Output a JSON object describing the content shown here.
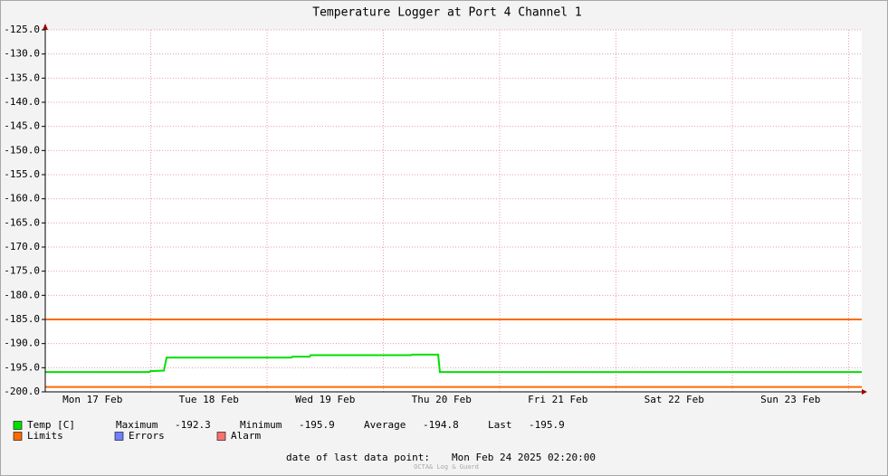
{
  "chart_data": {
    "type": "line",
    "title": "Temperature Logger at Port 4 Channel 1",
    "x": [
      0.093,
      0.988,
      0.996,
      1.113,
      1.136,
      2.21,
      2.218,
      2.366,
      2.374,
      3.237,
      3.245,
      3.471,
      3.486,
      7.113
    ],
    "series": [
      {
        "name": "Temp [C]",
        "color": "#00e000",
        "values": [
          -195.9,
          -195.9,
          -195.7,
          -195.6,
          -192.9,
          -192.9,
          -192.7,
          -192.7,
          -192.4,
          -192.4,
          -192.3,
          -192.3,
          -195.9,
          -195.9
        ]
      }
    ],
    "limits": {
      "name": "Limits",
      "color": "#ff6a00",
      "values": [
        -185,
        -199
      ]
    },
    "other_legend": [
      {
        "name": "Errors",
        "color": "#7080ff"
      },
      {
        "name": "Alarm",
        "color": "#ff7070"
      }
    ],
    "stats": [
      {
        "label": "Maximum",
        "value": -192.3
      },
      {
        "label": "Minimum",
        "value": -195.9
      },
      {
        "label": "Average",
        "value": -194.8
      },
      {
        "label": "Last",
        "value": -195.9
      }
    ],
    "xlim": [
      0.093,
      7.113
    ],
    "xticks": [
      {
        "value": 0.5,
        "label": "Mon 17 Feb"
      },
      {
        "value": 1.5,
        "label": "Tue 18 Feb"
      },
      {
        "value": 2.5,
        "label": "Wed 19 Feb"
      },
      {
        "value": 3.5,
        "label": "Thu 20 Feb"
      },
      {
        "value": 4.5,
        "label": "Fri 21 Feb"
      },
      {
        "value": 5.5,
        "label": "Sat 22 Feb"
      },
      {
        "value": 6.5,
        "label": "Sun 23 Feb"
      }
    ],
    "xgrid": [
      1,
      2,
      3,
      4,
      5,
      6,
      7
    ],
    "ylim": [
      -200,
      -125
    ],
    "yticks": [
      {
        "value": -200,
        "label": "-200.0"
      },
      {
        "value": -195,
        "label": "-195.0"
      },
      {
        "value": -190,
        "label": "-190.0"
      },
      {
        "value": -185,
        "label": "-185.0"
      },
      {
        "value": -180,
        "label": "-180.0"
      },
      {
        "value": -175,
        "label": "-175.0"
      },
      {
        "value": -170,
        "label": "-170.0"
      },
      {
        "value": -165,
        "label": "-165.0"
      },
      {
        "value": -160,
        "label": "-160.0"
      },
      {
        "value": -155,
        "label": "-155.0"
      },
      {
        "value": -150,
        "label": "-150.0"
      },
      {
        "value": -145,
        "label": "-145.0"
      },
      {
        "value": -140,
        "label": "-140.0"
      },
      {
        "value": -135,
        "label": "-135.0"
      },
      {
        "value": -130,
        "label": "-130.0"
      },
      {
        "value": -125,
        "label": "-125.0"
      }
    ],
    "grid": true,
    "footer": {
      "label": "date of last data point:",
      "value": "Mon Feb 24 2025 02:20:00"
    },
    "watermark": "OCTA& Log & Guard"
  }
}
